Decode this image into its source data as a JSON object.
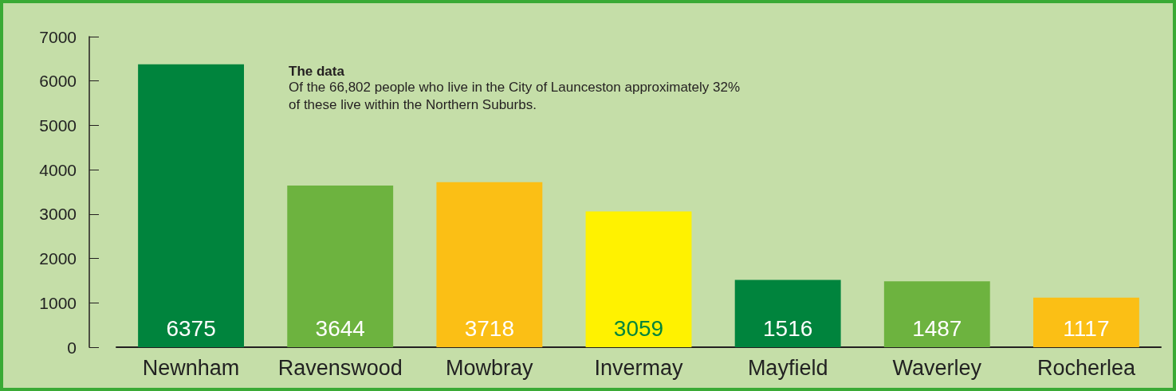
{
  "chart_data": {
    "type": "bar",
    "categories": [
      "Newnham",
      "Ravenswood",
      "Mowbray",
      "Invermay",
      "Mayfield",
      "Waverley",
      "Rocherlea"
    ],
    "values": [
      6375,
      3644,
      3718,
      3059,
      1516,
      1487,
      1117
    ],
    "colors": [
      "#00843d",
      "#6db33f",
      "#fbbf15",
      "#fff200",
      "#00843d",
      "#6db33f",
      "#fbbf15"
    ],
    "ylim": [
      0,
      7000
    ],
    "yticks": [
      0,
      1000,
      2000,
      3000,
      4000,
      5000,
      6000,
      7000
    ],
    "grid": false,
    "data_labels": true,
    "annotations": [
      "The data",
      "Of the 66,802 people who live in the City of Launceston approximately 32% of these live within the Northern Suburbs."
    ]
  }
}
